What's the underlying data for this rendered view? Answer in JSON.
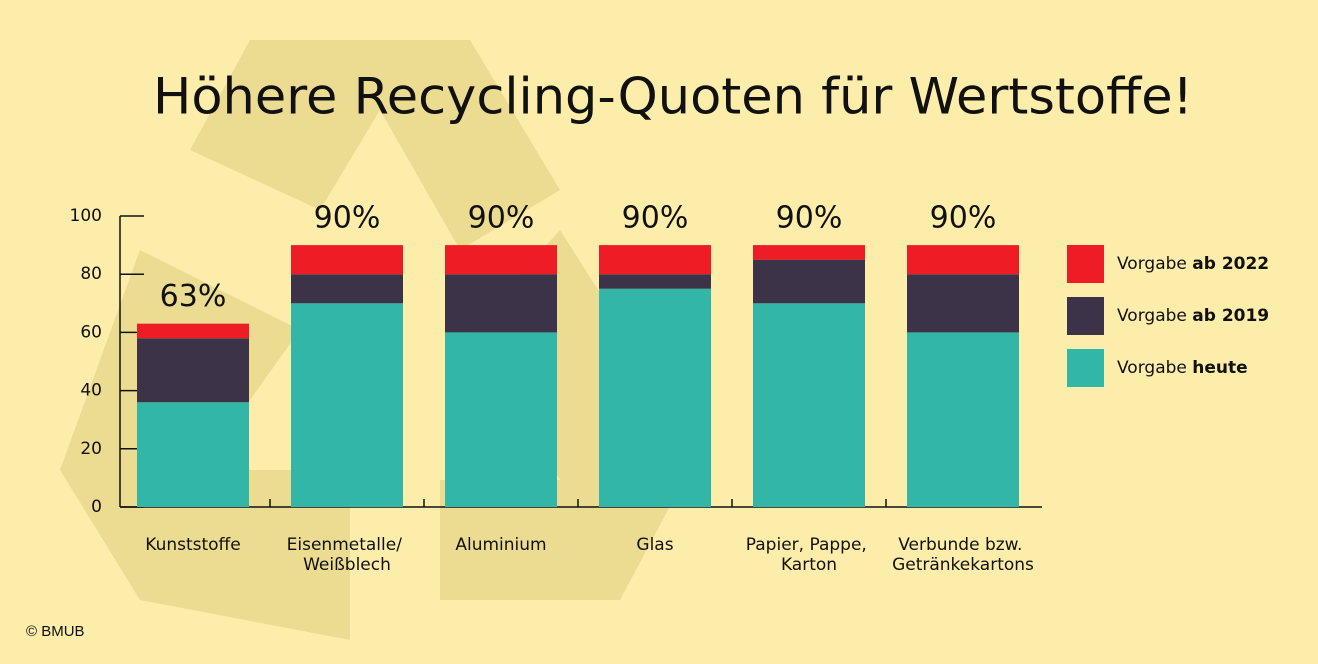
{
  "chart_data": {
    "type": "stacked_bar",
    "title": "Höhere Recycling-Quoten für Wertstoffe!",
    "categories": [
      "Kunststoffe",
      "Eisenmetalle/ Weißblech",
      "Aluminium",
      "Glas",
      "Papier, Pappe, Karton",
      "Verbunde bzw. Getränkekartons"
    ],
    "series": [
      {
        "name": "Vorgabe heute",
        "color": "#31b6a8",
        "values": [
          36,
          70,
          60,
          75,
          70,
          60
        ]
      },
      {
        "name": "Vorgabe ab 2019",
        "color": "#3d3349",
        "values": [
          22,
          10,
          20,
          5,
          15,
          20
        ]
      },
      {
        "name": "Vorgabe ab 2022",
        "color": "#ee1c25",
        "values": [
          5,
          10,
          10,
          10,
          5,
          10
        ]
      }
    ],
    "totals": {
      "values": [
        63,
        90,
        90,
        90,
        90,
        90
      ],
      "value_labels": [
        "63%",
        "90%",
        "90%",
        "90%",
        "90%",
        "90%"
      ]
    },
    "ylim": [
      0,
      100
    ],
    "yticks": [
      0,
      20,
      40,
      60,
      80,
      100
    ],
    "legend": "right",
    "source": "© BMUB"
  }
}
